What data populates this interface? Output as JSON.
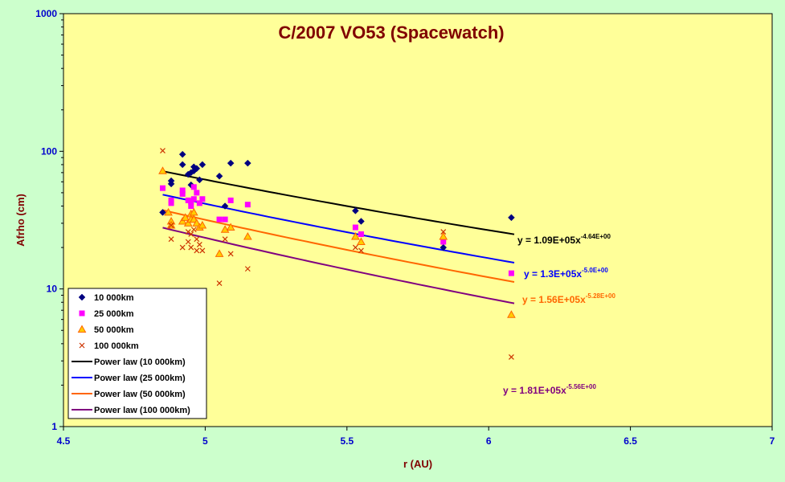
{
  "chart_data": {
    "type": "scatter",
    "title": "C/2007 VO53 (Spacewatch)",
    "xlabel": "r (AU)",
    "ylabel": "Afrho (cm)",
    "xlim": [
      4.5,
      7
    ],
    "ylim": [
      1,
      1000
    ],
    "yscale": "log",
    "x_ticks": [
      "4.5",
      "5",
      "5.5",
      "6",
      "6.5",
      "7"
    ],
    "y_ticks": [
      "1",
      "10",
      "100",
      "1000"
    ],
    "grid": false,
    "legend_position": "bottom-left",
    "colors": {
      "plot_bg": "#ffff99",
      "outer_bg": "#ccffcc",
      "frame": "#000000"
    },
    "series": [
      {
        "name": "10 000km",
        "marker": "diamond",
        "color": "#000080",
        "points": [
          [
            4.85,
            36
          ],
          [
            4.88,
            58
          ],
          [
            4.88,
            61
          ],
          [
            4.92,
            95
          ],
          [
            4.92,
            80
          ],
          [
            4.94,
            68
          ],
          [
            4.95,
            57
          ],
          [
            4.95,
            70
          ],
          [
            4.96,
            72
          ],
          [
            4.96,
            77
          ],
          [
            4.97,
            75
          ],
          [
            4.98,
            62
          ],
          [
            4.99,
            80
          ],
          [
            5.05,
            66
          ],
          [
            5.07,
            40
          ],
          [
            5.09,
            82
          ],
          [
            5.15,
            82
          ],
          [
            5.53,
            37
          ],
          [
            5.55,
            31
          ],
          [
            5.84,
            20
          ],
          [
            6.08,
            33
          ]
        ]
      },
      {
        "name": "25 000km",
        "marker": "square",
        "color": "#ff00ff",
        "points": [
          [
            4.85,
            54
          ],
          [
            4.88,
            44
          ],
          [
            4.88,
            42
          ],
          [
            4.92,
            52
          ],
          [
            4.92,
            49
          ],
          [
            4.94,
            44
          ],
          [
            4.95,
            43
          ],
          [
            4.95,
            40
          ],
          [
            4.96,
            55
          ],
          [
            4.96,
            45
          ],
          [
            4.97,
            50
          ],
          [
            4.98,
            42
          ],
          [
            4.99,
            45
          ],
          [
            5.05,
            32
          ],
          [
            5.07,
            32
          ],
          [
            5.09,
            44
          ],
          [
            5.15,
            41
          ],
          [
            5.53,
            28
          ],
          [
            5.55,
            25
          ],
          [
            5.84,
            22
          ],
          [
            6.08,
            13
          ]
        ]
      },
      {
        "name": "50 000km",
        "marker": "triangle",
        "color": "#ff6600",
        "points": [
          [
            4.85,
            72
          ],
          [
            4.87,
            36
          ],
          [
            4.88,
            31
          ],
          [
            4.88,
            29
          ],
          [
            4.92,
            31
          ],
          [
            4.93,
            33
          ],
          [
            4.94,
            30
          ],
          [
            4.95,
            35
          ],
          [
            4.95,
            32
          ],
          [
            4.96,
            36
          ],
          [
            4.96,
            32
          ],
          [
            4.97,
            30
          ],
          [
            4.98,
            28
          ],
          [
            4.99,
            29
          ],
          [
            5.05,
            18
          ],
          [
            5.07,
            27
          ],
          [
            5.09,
            28
          ],
          [
            5.15,
            24
          ],
          [
            5.53,
            24
          ],
          [
            5.55,
            22
          ],
          [
            5.84,
            24
          ],
          [
            6.08,
            6.5
          ]
        ]
      },
      {
        "name": "100 000km",
        "marker": "x",
        "color": "#cc3300",
        "points": [
          [
            4.85,
            101
          ],
          [
            4.88,
            23
          ],
          [
            4.88,
            29
          ],
          [
            4.92,
            20
          ],
          [
            4.94,
            22
          ],
          [
            4.94,
            26
          ],
          [
            4.95,
            25
          ],
          [
            4.95,
            20
          ],
          [
            4.96,
            27
          ],
          [
            4.97,
            19
          ],
          [
            4.97,
            23
          ],
          [
            4.98,
            21
          ],
          [
            4.99,
            19
          ],
          [
            5.05,
            11
          ],
          [
            5.07,
            23
          ],
          [
            5.09,
            18
          ],
          [
            5.15,
            14
          ],
          [
            5.53,
            20
          ],
          [
            5.55,
            19
          ],
          [
            5.84,
            26
          ],
          [
            6.08,
            3.2
          ]
        ]
      }
    ],
    "fits": [
      {
        "name": "Power law (10 000km)",
        "color": "#000000",
        "coef": 109000,
        "exp": -4.64,
        "x_range": [
          4.85,
          6.09
        ],
        "eq_base": "y = 1.09E+05x",
        "eq_exp": "-4.64E+00",
        "eq_color": "#000000"
      },
      {
        "name": "Power law (25 000km)",
        "color": "#0000ff",
        "coef": 130000,
        "exp": -5.0,
        "x_range": [
          4.85,
          6.09
        ],
        "eq_base": "y = 1.3E+05x",
        "eq_exp": "-5.0E+00",
        "eq_color": "#0000ff"
      },
      {
        "name": "Power law (50 000km)",
        "color": "#ff6600",
        "coef": 156000,
        "exp": -5.28,
        "x_range": [
          4.85,
          6.09
        ],
        "eq_base": "y = 1.56E+05x",
        "eq_exp": "-5.28E+00",
        "eq_color": "#ff6600"
      },
      {
        "name": "Power law (100 000km)",
        "color": "#800080",
        "coef": 181000,
        "exp": -5.56,
        "x_range": [
          4.85,
          6.09
        ],
        "eq_base": "y = 1.81E+05x",
        "eq_exp": "-5.56E+00",
        "eq_color": "#800080"
      }
    ]
  }
}
